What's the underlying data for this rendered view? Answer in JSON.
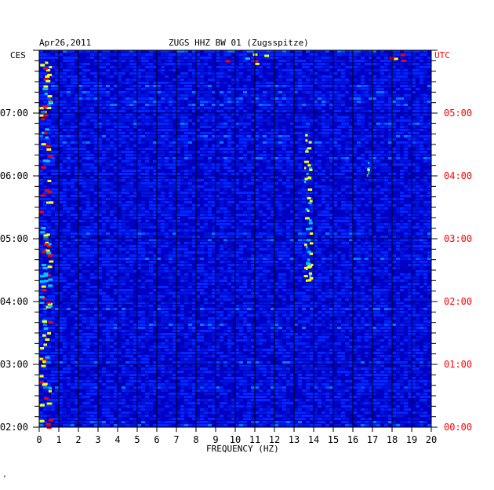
{
  "header": {
    "date": "Apr26,2011",
    "station": "ZUGS HHZ BW 01 (Zugsspitze)"
  },
  "corner": {
    "left_tz": "CES",
    "right_tz": "UTC"
  },
  "footer_mark": "ʼ",
  "chart_data": {
    "type": "heatmap",
    "title": "ZUGS HHZ BW 01 (Zugsspitze)",
    "date": "Apr26,2011",
    "xlabel": "FREQUENCY (HZ)",
    "xlim": [
      0,
      20
    ],
    "x_ticks": [
      "0",
      "1",
      "2",
      "3",
      "4",
      "5",
      "6",
      "7",
      "8",
      "9",
      "10",
      "11",
      "12",
      "13",
      "14",
      "15",
      "16",
      "17",
      "18",
      "19",
      "20"
    ],
    "left_axis_label": "CES",
    "left_ticks": [
      "02:00",
      "03:00",
      "04:00",
      "05:00",
      "06:00",
      "07:00"
    ],
    "right_axis_label": "UTC",
    "right_ticks": [
      "00:00",
      "01:00",
      "02:00",
      "03:00",
      "04:00",
      "05:00"
    ],
    "time_range_utc": [
      "00:00",
      "06:00"
    ],
    "colors": {
      "background_low": "#0000c8",
      "mid": "#00c8ff",
      "high": "#ffff00",
      "peak": "#ff0000",
      "utc_labels": "#ff0000"
    },
    "features": [
      {
        "freq_hz": [
          0,
          0.5
        ],
        "time_utc": [
          "00:00",
          "06:00"
        ],
        "intensity": "high"
      },
      {
        "freq_hz": [
          13.5,
          13.8
        ],
        "time_utc": [
          "02:15",
          "04:45"
        ],
        "intensity": "medium"
      },
      {
        "freq_hz": [
          9.5,
          11.5
        ],
        "time_utc": [
          "05:45",
          "06:00"
        ],
        "intensity": "high"
      },
      {
        "freq_hz": [
          17.8,
          19.0
        ],
        "time_utc": [
          "05:45",
          "06:00"
        ],
        "intensity": "high"
      },
      {
        "freq_hz": [
          16.7,
          16.8
        ],
        "time_utc": [
          "03:55",
          "04:15"
        ],
        "intensity": "medium"
      }
    ],
    "grid": true
  }
}
